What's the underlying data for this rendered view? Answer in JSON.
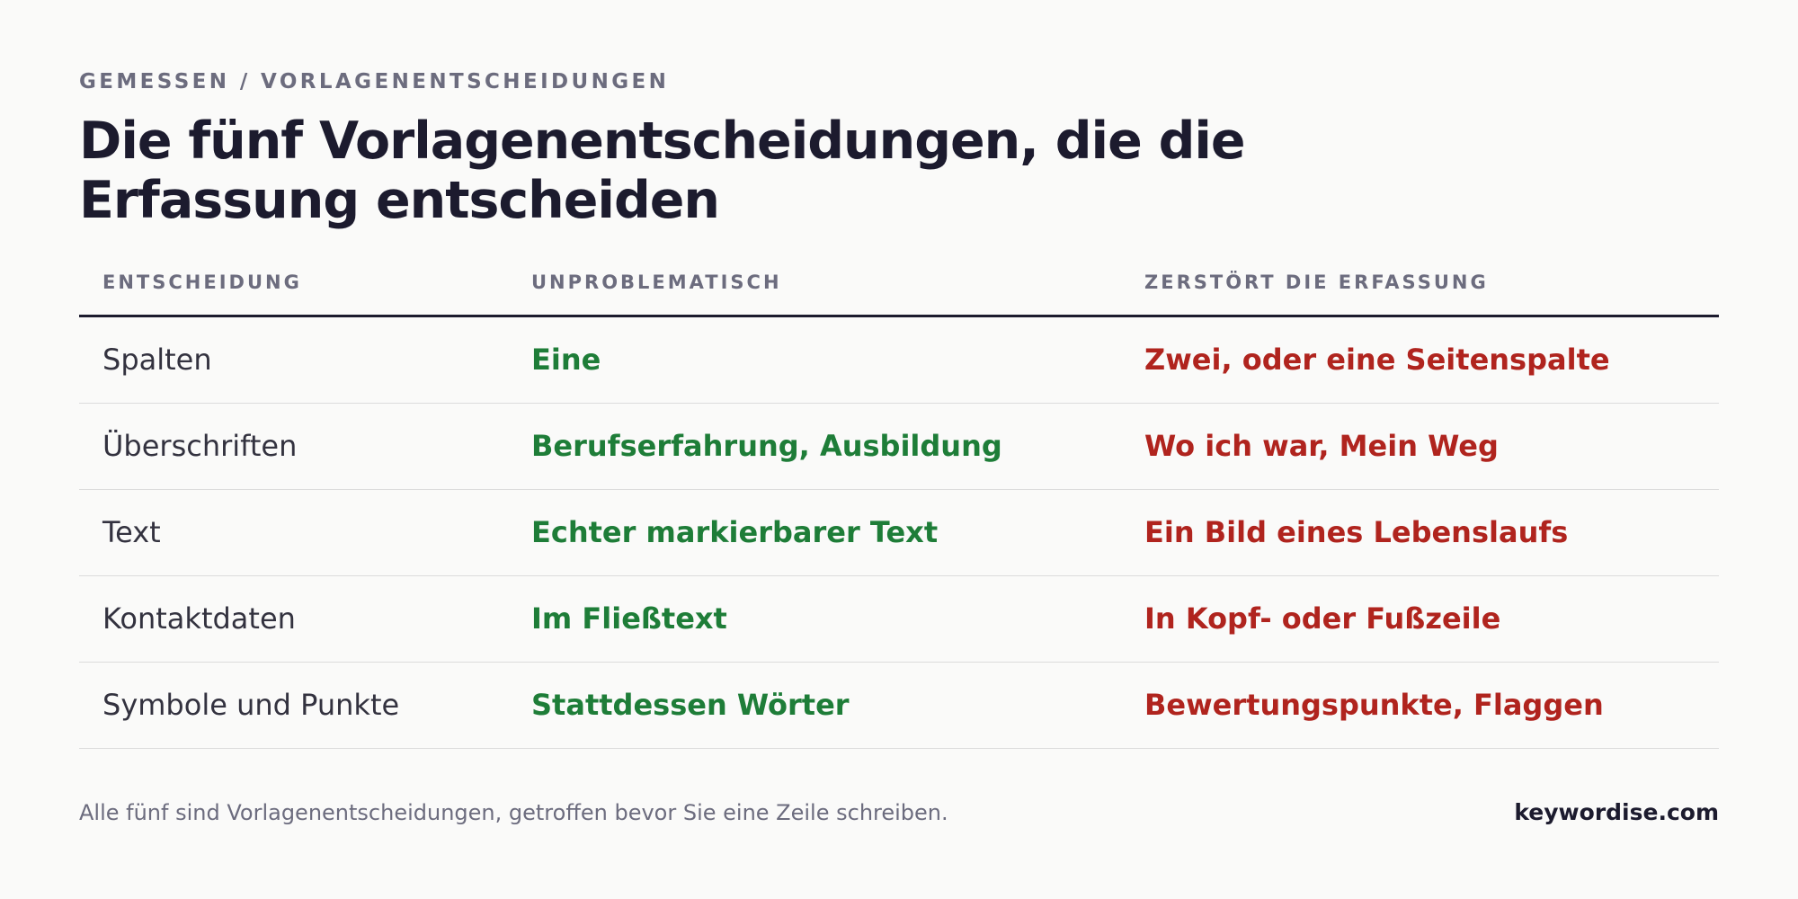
{
  "eyebrow": "GEMESSEN / VORLAGENENTSCHEIDUNGEN",
  "title": "Die fünf Vorlagenentscheidungen, die die Erfassung entscheiden",
  "table": {
    "headers": [
      "ENTSCHEIDUNG",
      "UNPROBLEMATISCH",
      "ZERSTÖRT DIE ERFASSUNG"
    ],
    "rows": [
      [
        "Spalten",
        "Eine",
        "Zwei, oder eine Seitenspalte"
      ],
      [
        "Überschriften",
        "Berufserfahrung, Ausbildung",
        "Wo ich war, Mein Weg"
      ],
      [
        "Text",
        "Echter markierbarer Text",
        "Ein Bild eines Lebenslaufs"
      ],
      [
        "Kontaktdaten",
        "Im Fließtext",
        "In Kopf- oder Fußzeile"
      ],
      [
        "Symbole und Punkte",
        "Stattdessen Wörter",
        "Bewertungspunkte, Flaggen"
      ]
    ]
  },
  "footer": {
    "note": "Alle fünf sind Vorlagenentscheidungen, getroffen bevor Sie eine Zeile schreiben.",
    "brand": "keywordise.com"
  },
  "colors": {
    "good": "#1e7d38",
    "bad": "#b0241e",
    "muted": "#6c6c7e",
    "ink": "#1c1b2e"
  }
}
